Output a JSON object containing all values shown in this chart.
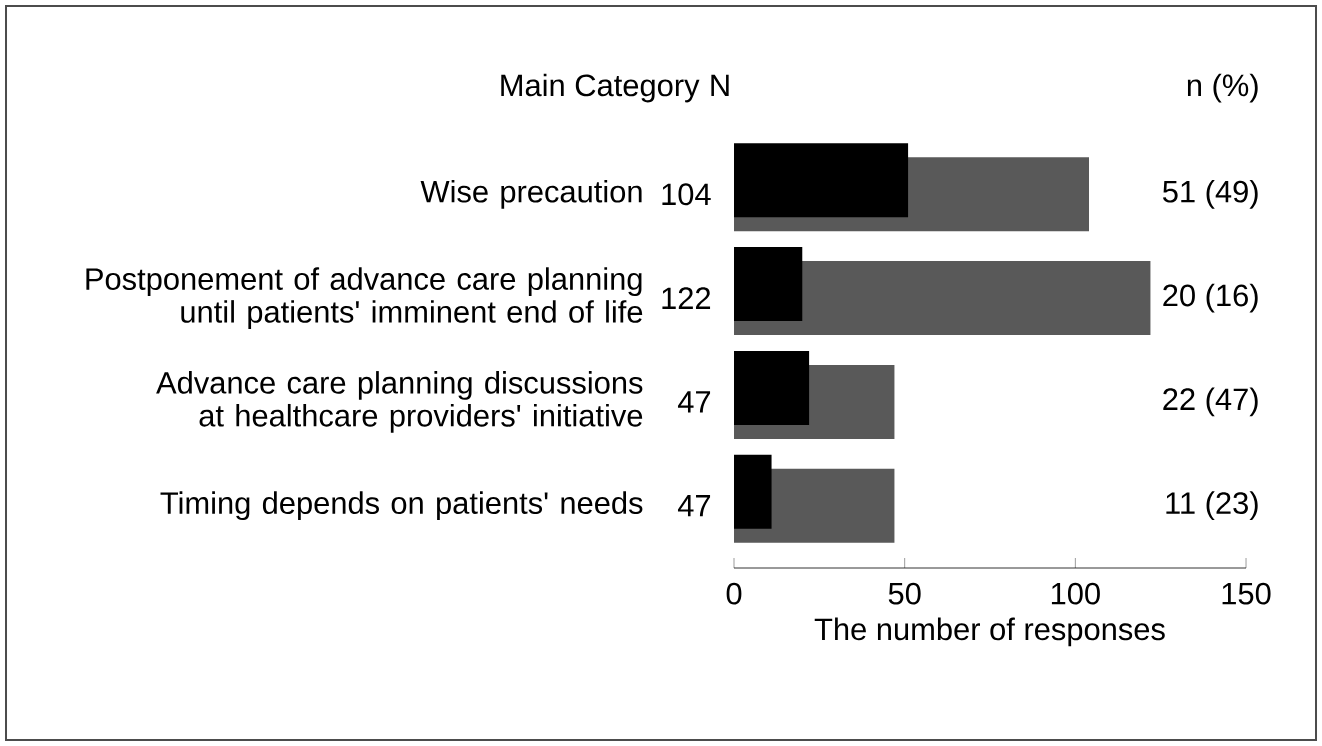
{
  "chart_data": {
    "type": "bar",
    "orientation": "horizontal",
    "categories": [
      "Wise precaution",
      "Postponement of advance care planning until patients' imminent end of life",
      "Advance care planning discussions at healthcare providers' initiative",
      "Timing depends on patients' needs"
    ],
    "series": [
      {
        "color": "#595959",
        "values": [
          104,
          122,
          47,
          47
        ],
        "value_labels": [
          "104",
          "122",
          "47",
          "47"
        ]
      },
      {
        "color": "#000000",
        "values": [
          51,
          20,
          22,
          11
        ],
        "value_labels": [
          "51 (49)",
          "20 (16)",
          "22 (47)",
          "11 (23)"
        ]
      }
    ],
    "xlabel": "The number of responses",
    "xlim": [
      0,
      150
    ],
    "xticks": [
      0,
      50,
      100,
      150
    ],
    "annotations": [
      "Main Category",
      "N",
      "n (%)"
    ]
  }
}
